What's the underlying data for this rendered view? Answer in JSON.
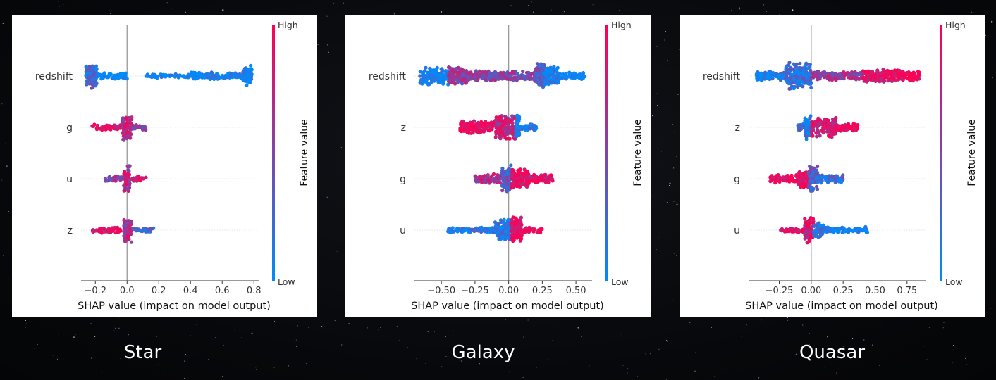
{
  "panels": [
    {
      "caption": "Star"
    },
    {
      "caption": "Galaxy"
    },
    {
      "caption": "Quasar"
    }
  ],
  "colors": {
    "low": "#008bfb",
    "high": "#ff0052",
    "zero_line": "#999999",
    "caption": "#ffffff"
  },
  "chart_data": [
    {
      "type": "scatter",
      "subtype": "shap-beeswarm",
      "title": "",
      "xlabel": "SHAP value (impact on model output)",
      "ylabel": "",
      "xlim": [
        -0.29,
        0.83
      ],
      "xticks": [
        -0.2,
        0.0,
        0.2,
        0.4,
        0.6,
        0.8
      ],
      "xtick_labels": [
        "−0.2",
        "0.0",
        "0.2",
        "0.4",
        "0.6",
        "0.8"
      ],
      "features": [
        "redshift",
        "g",
        "u",
        "z"
      ],
      "colorbar": {
        "label": "Feature value",
        "high": "High",
        "low": "Low"
      },
      "distributions": [
        {
          "feature": "redshift",
          "min": -0.26,
          "max": 0.79,
          "clusters": [
            {
              "range": [
                -0.26,
                -0.19
              ],
              "density": 1.0,
              "color": 0.25
            },
            {
              "range": [
                -0.19,
                0.0
              ],
              "density": 0.15,
              "color": 0.0
            },
            {
              "range": [
                0.12,
                0.4
              ],
              "density": 0.06,
              "color": 0.0
            },
            {
              "range": [
                0.4,
                0.73
              ],
              "density": 0.18,
              "color": 0.0
            },
            {
              "range": [
                0.73,
                0.79
              ],
              "density": 0.8,
              "color": 0.0
            }
          ]
        },
        {
          "feature": "g",
          "min": -0.22,
          "max": 0.12,
          "clusters": [
            {
              "range": [
                -0.22,
                -0.04
              ],
              "density": 0.12,
              "color": 0.9
            },
            {
              "range": [
                -0.03,
                0.03
              ],
              "density": 1.0,
              "color": 0.7
            },
            {
              "range": [
                0.03,
                0.12
              ],
              "density": 0.12,
              "color": 0.5
            }
          ]
        },
        {
          "feature": "u",
          "min": -0.14,
          "max": 0.12,
          "clusters": [
            {
              "range": [
                -0.14,
                -0.03
              ],
              "density": 0.12,
              "color": 0.55
            },
            {
              "range": [
                -0.02,
                0.02
              ],
              "density": 1.0,
              "color": 0.7
            },
            {
              "range": [
                0.03,
                0.12
              ],
              "density": 0.12,
              "color": 0.9
            }
          ]
        },
        {
          "feature": "z",
          "min": -0.22,
          "max": 0.17,
          "clusters": [
            {
              "range": [
                -0.22,
                -0.04
              ],
              "density": 0.12,
              "color": 0.9
            },
            {
              "range": [
                -0.02,
                0.03
              ],
              "density": 1.0,
              "color": 0.65
            },
            {
              "range": [
                0.04,
                0.17
              ],
              "density": 0.08,
              "color": 0.3
            }
          ]
        }
      ]
    },
    {
      "type": "scatter",
      "subtype": "shap-beeswarm",
      "title": "",
      "xlabel": "SHAP value (impact on model output)",
      "ylabel": "",
      "xlim": [
        -0.7,
        0.62
      ],
      "xticks": [
        -0.5,
        -0.25,
        0.0,
        0.25,
        0.5
      ],
      "xtick_labels": [
        "−0.50",
        "−0.25",
        "0.00",
        "0.25",
        "0.50"
      ],
      "features": [
        "redshift",
        "z",
        "g",
        "u"
      ],
      "colorbar": {
        "label": "Feature value",
        "high": "High",
        "low": "Low"
      },
      "distributions": [
        {
          "feature": "redshift",
          "min": -0.66,
          "max": 0.57,
          "clusters": [
            {
              "range": [
                -0.66,
                -0.45
              ],
              "density": 0.6,
              "color": 0.05
            },
            {
              "range": [
                -0.45,
                -0.3
              ],
              "density": 0.6,
              "color": 0.55
            },
            {
              "range": [
                -0.3,
                0.2
              ],
              "density": 0.3,
              "color": 0.5
            },
            {
              "range": [
                0.2,
                0.27
              ],
              "density": 1.0,
              "color": 0.35
            },
            {
              "range": [
                0.27,
                0.37
              ],
              "density": 0.7,
              "color": 0.1
            },
            {
              "range": [
                0.37,
                0.57
              ],
              "density": 0.2,
              "color": 0.0
            }
          ]
        },
        {
          "feature": "z",
          "min": -0.36,
          "max": 0.21,
          "clusters": [
            {
              "range": [
                -0.36,
                -0.1
              ],
              "density": 0.45,
              "color": 0.95
            },
            {
              "range": [
                -0.1,
                0.05
              ],
              "density": 0.9,
              "color": 0.75
            },
            {
              "range": [
                0.05,
                0.08
              ],
              "density": 1.0,
              "color": 0.1
            },
            {
              "range": [
                0.08,
                0.21
              ],
              "density": 0.2,
              "color": 0.1
            }
          ]
        },
        {
          "feature": "g",
          "min": -0.25,
          "max": 0.33,
          "clusters": [
            {
              "range": [
                -0.25,
                -0.05
              ],
              "density": 0.3,
              "color": 0.7
            },
            {
              "range": [
                -0.05,
                0.02
              ],
              "density": 1.0,
              "color": 0.35
            },
            {
              "range": [
                0.02,
                0.15
              ],
              "density": 0.7,
              "color": 0.9
            },
            {
              "range": [
                0.15,
                0.33
              ],
              "density": 0.25,
              "color": 0.9
            }
          ]
        },
        {
          "feature": "u",
          "min": -0.45,
          "max": 0.25,
          "clusters": [
            {
              "range": [
                -0.45,
                -0.1
              ],
              "density": 0.12,
              "color": 0.1
            },
            {
              "range": [
                -0.1,
                0.02
              ],
              "density": 0.75,
              "color": 0.15
            },
            {
              "range": [
                0.02,
                0.1
              ],
              "density": 1.0,
              "color": 0.9
            },
            {
              "range": [
                0.1,
                0.25
              ],
              "density": 0.12,
              "color": 0.9
            }
          ]
        }
      ]
    },
    {
      "type": "scatter",
      "subtype": "shap-beeswarm",
      "title": "",
      "xlabel": "SHAP value (impact on model output)",
      "ylabel": "",
      "xlim": [
        -0.49,
        0.9
      ],
      "xticks": [
        -0.25,
        0.0,
        0.25,
        0.5,
        0.75
      ],
      "xtick_labels": [
        "−0.25",
        "0.00",
        "0.25",
        "0.50",
        "0.75"
      ],
      "features": [
        "redshift",
        "z",
        "g",
        "u"
      ],
      "colorbar": {
        "label": "Feature value",
        "high": "High",
        "low": "Low"
      },
      "distributions": [
        {
          "feature": "redshift",
          "min": -0.43,
          "max": 0.85,
          "clusters": [
            {
              "range": [
                -0.43,
                -0.2
              ],
              "density": 0.3,
              "color": 0.05
            },
            {
              "range": [
                -0.2,
                0.0
              ],
              "density": 1.0,
              "color": 0.2
            },
            {
              "range": [
                0.0,
                0.4
              ],
              "density": 0.25,
              "color": 0.6
            },
            {
              "range": [
                0.4,
                0.7
              ],
              "density": 0.45,
              "color": 0.9
            },
            {
              "range": [
                0.7,
                0.85
              ],
              "density": 0.3,
              "color": 1.0
            }
          ]
        },
        {
          "feature": "z",
          "min": -0.11,
          "max": 0.37,
          "clusters": [
            {
              "range": [
                -0.11,
                -0.05
              ],
              "density": 0.3,
              "color": 0.2
            },
            {
              "range": [
                -0.05,
                0.0
              ],
              "density": 1.0,
              "color": 0.15
            },
            {
              "range": [
                0.0,
                0.2
              ],
              "density": 0.7,
              "color": 0.85
            },
            {
              "range": [
                0.2,
                0.37
              ],
              "density": 0.25,
              "color": 0.95
            }
          ]
        },
        {
          "feature": "g",
          "min": -0.32,
          "max": 0.25,
          "clusters": [
            {
              "range": [
                -0.32,
                -0.1
              ],
              "density": 0.25,
              "color": 0.95
            },
            {
              "range": [
                -0.1,
                -0.02
              ],
              "density": 0.75,
              "color": 0.9
            },
            {
              "range": [
                -0.02,
                0.05
              ],
              "density": 1.0,
              "color": 0.25
            },
            {
              "range": [
                0.05,
                0.25
              ],
              "density": 0.3,
              "color": 0.2
            }
          ]
        },
        {
          "feature": "u",
          "min": -0.24,
          "max": 0.44,
          "clusters": [
            {
              "range": [
                -0.24,
                -0.05
              ],
              "density": 0.1,
              "color": 0.95
            },
            {
              "range": [
                -0.05,
                0.02
              ],
              "density": 1.0,
              "color": 0.8
            },
            {
              "range": [
                0.02,
                0.1
              ],
              "density": 0.5,
              "color": 0.15
            },
            {
              "range": [
                0.1,
                0.44
              ],
              "density": 0.15,
              "color": 0.0
            }
          ]
        }
      ]
    }
  ]
}
